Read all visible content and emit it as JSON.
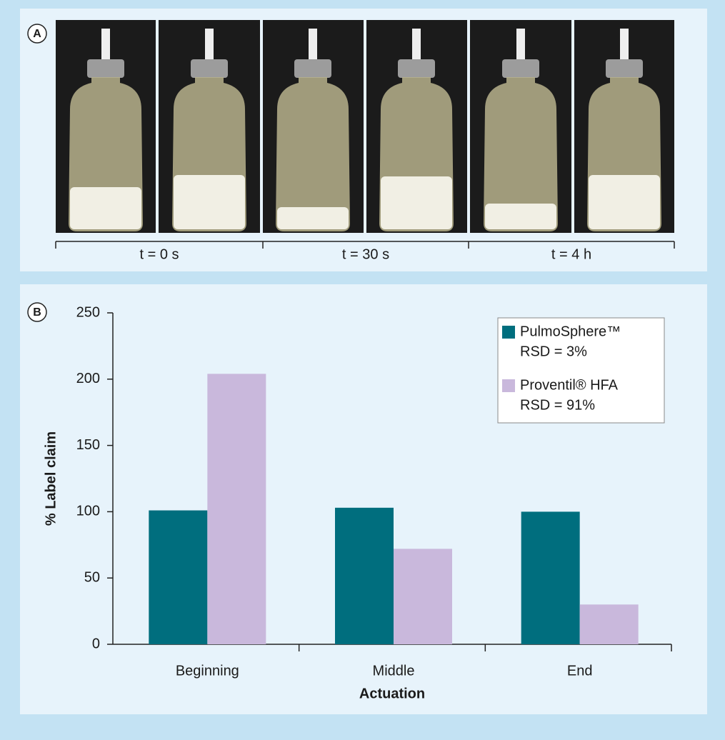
{
  "panel_a": {
    "label": "A",
    "times": [
      "t = 0 s",
      "t = 30 s",
      "t = 4 h"
    ]
  },
  "chart_data": {
    "type": "bar",
    "panel_label": "B",
    "x_label": "Actuation",
    "y_label": "% Label claim",
    "categories": [
      "Beginning",
      "Middle",
      "End"
    ],
    "series": [
      {
        "name": "PulmoSphere™",
        "note": "RSD = 3%",
        "color": "#006e7e",
        "values": [
          101,
          103,
          100
        ]
      },
      {
        "name": "Proventil® HFA",
        "note": "RSD = 91%",
        "color": "#c9b8dc",
        "values": [
          204,
          72,
          30
        ]
      }
    ],
    "ylim": [
      0,
      250
    ],
    "yticks": [
      0,
      50,
      100,
      150,
      200,
      250
    ],
    "grid": false,
    "legend": "upper right"
  }
}
